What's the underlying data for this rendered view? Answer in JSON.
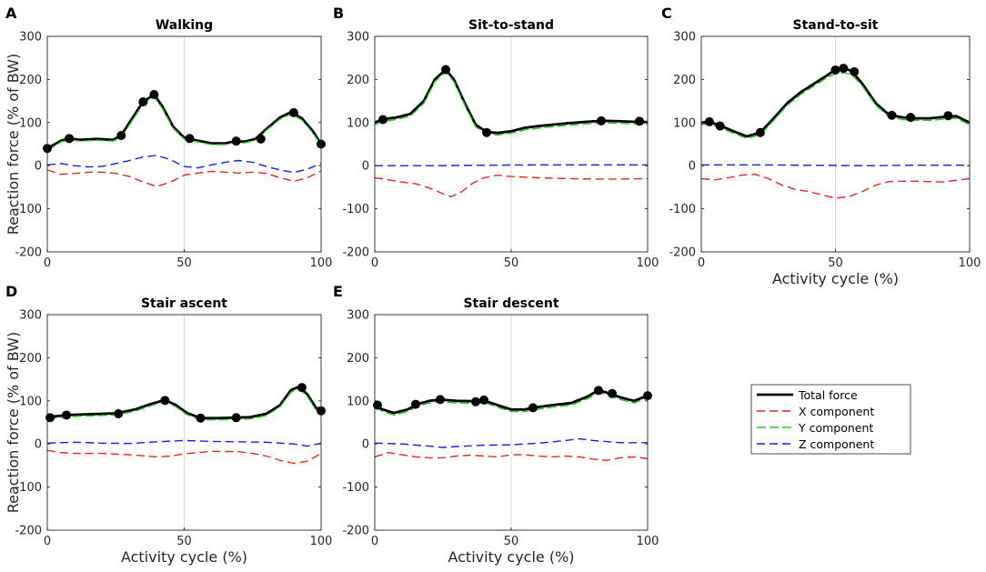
{
  "figure": {
    "xlabel": "Activity cycle (%)",
    "ylabel": "Reaction force (% of BW)",
    "legend": {
      "placement": "bottom-right",
      "entries": [
        {
          "key": "total",
          "label": "Total force",
          "color": "#000000",
          "style": "solid"
        },
        {
          "key": "x",
          "label": "X component",
          "color": "#e8231e",
          "style": "dashed"
        },
        {
          "key": "y",
          "label": "Y component",
          "color": "#22cc22",
          "style": "dashed"
        },
        {
          "key": "z",
          "label": "Z component",
          "color": "#1a1aee",
          "style": "dashed"
        }
      ]
    }
  },
  "chart_data": [
    {
      "type": "line",
      "letter": "A",
      "title": "Walking",
      "xlim": [
        0,
        100
      ],
      "ylim": [
        -200,
        300
      ],
      "xticks": [
        0,
        50,
        100
      ],
      "yticks": [
        -200,
        -100,
        0,
        100,
        200,
        300
      ],
      "show_xlabel": false,
      "show_ylabel": true,
      "series": [
        {
          "name": "Total force",
          "x": [
            0,
            5,
            8,
            12,
            18,
            24,
            27,
            30,
            35,
            39,
            42,
            46,
            50,
            55,
            60,
            65,
            68,
            72,
            76,
            80,
            85,
            89,
            93,
            97,
            100
          ],
          "y": [
            40,
            58,
            63,
            60,
            62,
            60,
            70,
            100,
            148,
            165,
            138,
            90,
            65,
            58,
            52,
            52,
            56,
            56,
            62,
            85,
            112,
            124,
            110,
            80,
            50
          ]
        },
        {
          "name": "X component",
          "x": [
            0,
            5,
            10,
            15,
            20,
            25,
            30,
            35,
            40,
            45,
            50,
            55,
            60,
            65,
            70,
            75,
            80,
            85,
            90,
            95,
            100
          ],
          "y": [
            -10,
            -20,
            -18,
            -15,
            -15,
            -18,
            -25,
            -38,
            -48,
            -38,
            -22,
            -17,
            -13,
            -15,
            -17,
            -15,
            -18,
            -28,
            -36,
            -28,
            -12
          ]
        },
        {
          "name": "Y component",
          "x": [
            0,
            5,
            8,
            12,
            18,
            24,
            27,
            30,
            35,
            39,
            42,
            46,
            50,
            55,
            60,
            65,
            68,
            72,
            76,
            80,
            85,
            89,
            93,
            97,
            100
          ],
          "y": [
            35,
            55,
            60,
            57,
            59,
            57,
            66,
            95,
            143,
            160,
            133,
            86,
            62,
            55,
            49,
            49,
            53,
            53,
            59,
            82,
            108,
            120,
            106,
            76,
            47
          ]
        },
        {
          "name": "Z component",
          "x": [
            0,
            5,
            10,
            15,
            20,
            25,
            30,
            35,
            40,
            45,
            50,
            55,
            60,
            65,
            70,
            75,
            80,
            85,
            90,
            95,
            100
          ],
          "y": [
            2,
            5,
            0,
            -3,
            -2,
            5,
            12,
            20,
            24,
            14,
            -2,
            -5,
            2,
            8,
            12,
            8,
            -2,
            -10,
            -16,
            -8,
            5
          ]
        }
      ],
      "markers": [
        {
          "x": 0,
          "y": 40
        },
        {
          "x": 8,
          "y": 63
        },
        {
          "x": 27,
          "y": 70
        },
        {
          "x": 35,
          "y": 148
        },
        {
          "x": 39,
          "y": 165
        },
        {
          "x": 52,
          "y": 63
        },
        {
          "x": 69,
          "y": 57
        },
        {
          "x": 78,
          "y": 62
        },
        {
          "x": 90,
          "y": 123
        },
        {
          "x": 100,
          "y": 50
        }
      ]
    },
    {
      "type": "line",
      "letter": "B",
      "title": "Sit-to-stand",
      "xlim": [
        0,
        100
      ],
      "ylim": [
        -200,
        300
      ],
      "xticks": [
        0,
        50,
        100
      ],
      "yticks": [
        -200,
        -100,
        0,
        100,
        200,
        300
      ],
      "show_xlabel": false,
      "show_ylabel": false,
      "series": [
        {
          "name": "Total force",
          "x": [
            0,
            3,
            8,
            13,
            18,
            22,
            26,
            29,
            33,
            37,
            41,
            45,
            50,
            55,
            60,
            70,
            80,
            85,
            90,
            95,
            100
          ],
          "y": [
            100,
            108,
            112,
            120,
            150,
            200,
            223,
            200,
            145,
            95,
            78,
            76,
            80,
            88,
            92,
            98,
            103,
            104,
            103,
            102,
            101
          ]
        },
        {
          "name": "X component",
          "x": [
            0,
            5,
            10,
            15,
            20,
            25,
            28,
            32,
            36,
            40,
            45,
            50,
            60,
            70,
            80,
            90,
            100
          ],
          "y": [
            -28,
            -33,
            -38,
            -42,
            -52,
            -65,
            -72,
            -60,
            -40,
            -28,
            -22,
            -25,
            -28,
            -30,
            -31,
            -31,
            -30
          ]
        },
        {
          "name": "Y component",
          "x": [
            0,
            3,
            8,
            13,
            18,
            22,
            26,
            29,
            33,
            37,
            41,
            45,
            50,
            55,
            60,
            70,
            80,
            85,
            90,
            95,
            100
          ],
          "y": [
            95,
            103,
            107,
            115,
            145,
            195,
            218,
            195,
            140,
            90,
            73,
            71,
            75,
            83,
            87,
            93,
            98,
            99,
            98,
            97,
            96
          ]
        },
        {
          "name": "Z component",
          "x": [
            0,
            20,
            40,
            60,
            80,
            100
          ],
          "y": [
            0,
            0,
            1,
            2,
            2,
            2
          ]
        }
      ],
      "markers": [
        {
          "x": 3,
          "y": 107
        },
        {
          "x": 26,
          "y": 223
        },
        {
          "x": 41,
          "y": 77
        },
        {
          "x": 83,
          "y": 104
        },
        {
          "x": 97,
          "y": 103
        }
      ]
    },
    {
      "type": "line",
      "letter": "C",
      "title": "Stand-to-sit",
      "xlim": [
        0,
        100
      ],
      "ylim": [
        -200,
        300
      ],
      "xticks": [
        0,
        50,
        100
      ],
      "yticks": [
        -200,
        -100,
        0,
        100,
        200,
        300
      ],
      "show_xlabel": true,
      "show_ylabel": false,
      "series": [
        {
          "name": "Total force",
          "x": [
            0,
            3,
            7,
            12,
            17,
            22,
            27,
            32,
            37,
            42,
            47,
            50,
            53,
            56,
            60,
            65,
            70,
            75,
            80,
            85,
            90,
            95,
            100
          ],
          "y": [
            100,
            102,
            93,
            80,
            68,
            77,
            110,
            145,
            170,
            190,
            210,
            223,
            226,
            220,
            190,
            145,
            118,
            112,
            110,
            110,
            113,
            115,
            100
          ]
        },
        {
          "name": "X component",
          "x": [
            0,
            5,
            10,
            15,
            20,
            25,
            30,
            35,
            40,
            45,
            50,
            55,
            60,
            65,
            70,
            75,
            80,
            90,
            100
          ],
          "y": [
            -30,
            -33,
            -28,
            -22,
            -20,
            -30,
            -45,
            -55,
            -60,
            -68,
            -75,
            -72,
            -60,
            -45,
            -37,
            -36,
            -36,
            -38,
            -30
          ]
        },
        {
          "name": "Y component",
          "x": [
            0,
            3,
            7,
            12,
            17,
            22,
            27,
            32,
            37,
            42,
            47,
            50,
            53,
            56,
            60,
            65,
            70,
            75,
            80,
            85,
            90,
            95,
            100
          ],
          "y": [
            95,
            97,
            88,
            75,
            63,
            72,
            105,
            140,
            165,
            185,
            205,
            213,
            216,
            212,
            185,
            140,
            113,
            107,
            105,
            105,
            108,
            110,
            95
          ]
        },
        {
          "name": "Z component",
          "x": [
            0,
            20,
            40,
            60,
            80,
            100
          ],
          "y": [
            2,
            2,
            1,
            0,
            1,
            1
          ]
        }
      ],
      "markers": [
        {
          "x": 3,
          "y": 102
        },
        {
          "x": 7,
          "y": 92
        },
        {
          "x": 22,
          "y": 77
        },
        {
          "x": 50,
          "y": 222
        },
        {
          "x": 53,
          "y": 226
        },
        {
          "x": 57,
          "y": 218
        },
        {
          "x": 71,
          "y": 117
        },
        {
          "x": 78,
          "y": 112
        },
        {
          "x": 92,
          "y": 116
        }
      ]
    },
    {
      "type": "line",
      "letter": "D",
      "title": "Stair ascent",
      "xlim": [
        0,
        100
      ],
      "ylim": [
        -200,
        300
      ],
      "xticks": [
        0,
        50,
        100
      ],
      "yticks": [
        -200,
        -100,
        0,
        100,
        200,
        300
      ],
      "show_xlabel": true,
      "show_ylabel": true,
      "series": [
        {
          "name": "Total force",
          "x": [
            0,
            7,
            15,
            25,
            32,
            38,
            43,
            47,
            51,
            56,
            62,
            68,
            74,
            80,
            85,
            89,
            92,
            95,
            98,
            100
          ],
          "y": [
            62,
            67,
            69,
            71,
            80,
            93,
            102,
            90,
            72,
            60,
            60,
            61,
            62,
            70,
            90,
            125,
            133,
            115,
            85,
            77
          ]
        },
        {
          "name": "X component",
          "x": [
            0,
            5,
            10,
            20,
            30,
            40,
            45,
            50,
            55,
            60,
            70,
            75,
            80,
            85,
            90,
            95,
            100
          ],
          "y": [
            -15,
            -20,
            -22,
            -22,
            -25,
            -30,
            -28,
            -23,
            -20,
            -17,
            -18,
            -22,
            -28,
            -38,
            -45,
            -40,
            -22
          ]
        },
        {
          "name": "Y component",
          "x": [
            0,
            7,
            15,
            25,
            32,
            38,
            43,
            47,
            51,
            56,
            62,
            68,
            74,
            80,
            85,
            89,
            92,
            95,
            98,
            100
          ],
          "y": [
            58,
            63,
            65,
            67,
            76,
            89,
            98,
            86,
            68,
            56,
            56,
            57,
            58,
            66,
            86,
            120,
            128,
            110,
            80,
            73
          ]
        },
        {
          "name": "Z component",
          "x": [
            0,
            10,
            20,
            30,
            40,
            50,
            60,
            70,
            80,
            90,
            95,
            100
          ],
          "y": [
            2,
            4,
            2,
            1,
            5,
            8,
            6,
            5,
            4,
            0,
            -5,
            2
          ]
        }
      ],
      "markers": [
        {
          "x": 1,
          "y": 61
        },
        {
          "x": 7,
          "y": 67
        },
        {
          "x": 26,
          "y": 70
        },
        {
          "x": 43,
          "y": 101
        },
        {
          "x": 56,
          "y": 60
        },
        {
          "x": 69,
          "y": 61
        },
        {
          "x": 93,
          "y": 131
        },
        {
          "x": 100,
          "y": 77
        }
      ]
    },
    {
      "type": "line",
      "letter": "E",
      "title": "Stair descent",
      "xlim": [
        0,
        100
      ],
      "ylim": [
        -200,
        300
      ],
      "xticks": [
        0,
        50,
        100
      ],
      "yticks": [
        -200,
        -100,
        0,
        100,
        200,
        300
      ],
      "show_xlabel": true,
      "show_ylabel": false,
      "series": [
        {
          "name": "Total force",
          "x": [
            0,
            3,
            7,
            12,
            16,
            20,
            24,
            30,
            37,
            40,
            45,
            50,
            55,
            58,
            65,
            72,
            78,
            82,
            86,
            90,
            95,
            100
          ],
          "y": [
            90,
            80,
            72,
            80,
            93,
            100,
            103,
            100,
            99,
            101,
            90,
            80,
            80,
            84,
            90,
            95,
            110,
            125,
            117,
            108,
            100,
            112
          ]
        },
        {
          "name": "X component",
          "x": [
            0,
            5,
            10,
            15,
            20,
            25,
            30,
            35,
            40,
            45,
            50,
            55,
            60,
            65,
            70,
            75,
            80,
            85,
            90,
            95,
            100
          ],
          "y": [
            -30,
            -20,
            -25,
            -30,
            -32,
            -32,
            -28,
            -26,
            -28,
            -30,
            -25,
            -25,
            -28,
            -30,
            -28,
            -30,
            -35,
            -38,
            -32,
            -30,
            -34
          ]
        },
        {
          "name": "Y component",
          "x": [
            0,
            3,
            7,
            12,
            16,
            20,
            24,
            30,
            37,
            40,
            45,
            50,
            55,
            58,
            65,
            72,
            78,
            82,
            86,
            90,
            95,
            100
          ],
          "y": [
            85,
            75,
            67,
            75,
            88,
            95,
            98,
            95,
            94,
            96,
            85,
            75,
            75,
            79,
            85,
            90,
            105,
            120,
            112,
            103,
            95,
            107
          ]
        },
        {
          "name": "Z component",
          "x": [
            0,
            10,
            20,
            25,
            30,
            40,
            50,
            60,
            70,
            75,
            80,
            90,
            100
          ],
          "y": [
            2,
            0,
            -5,
            -8,
            -6,
            -3,
            -2,
            2,
            8,
            12,
            8,
            3,
            3
          ]
        }
      ],
      "markers": [
        {
          "x": 1,
          "y": 90
        },
        {
          "x": 15,
          "y": 92
        },
        {
          "x": 24,
          "y": 103
        },
        {
          "x": 37,
          "y": 98
        },
        {
          "x": 40,
          "y": 102
        },
        {
          "x": 58,
          "y": 84
        },
        {
          "x": 82,
          "y": 124
        },
        {
          "x": 87,
          "y": 117
        },
        {
          "x": 100,
          "y": 112
        }
      ]
    }
  ]
}
